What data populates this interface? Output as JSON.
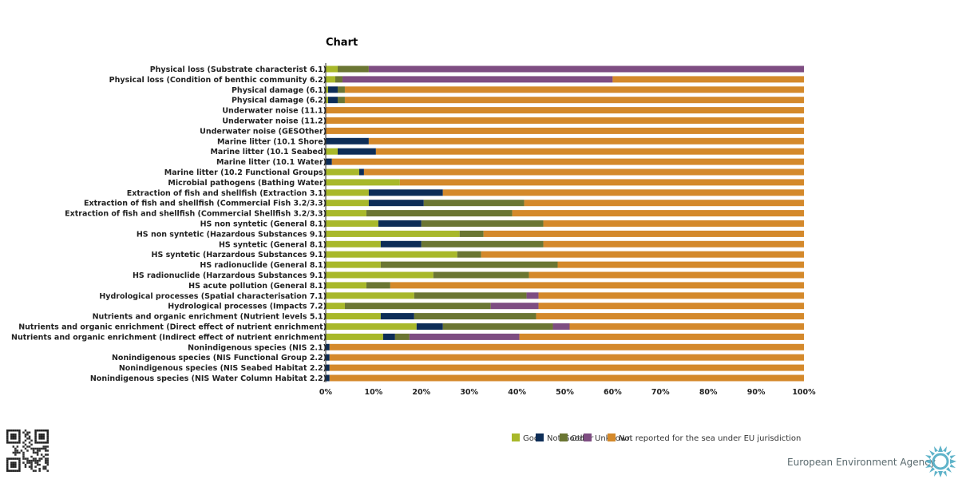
{
  "chart_data": {
    "type": "bar",
    "orientation": "horizontal",
    "stacked": "percent",
    "title": "Chart",
    "xlim": [
      0,
      100
    ],
    "x_ticks": [
      "0%",
      "10%",
      "20%",
      "30%",
      "40%",
      "50%",
      "60%",
      "70%",
      "80%",
      "90%",
      "100%"
    ],
    "legend_position": "bottom-right",
    "categories": [
      "Physical loss (Substrate characterist 6.1)",
      "Physical loss (Condition of benthic community 6.2)",
      "Physical damage (6.1)",
      "Physical damage (6.2)",
      "Underwater noise (11.1)",
      "Underwater noise (11.2)",
      "Underwater noise (GESOther)",
      "Marine litter (10.1 Shore)",
      "Marine litter (10.1 Seabed)",
      "Marine litter (10.1 Water)",
      "Marine litter (10.2 Functional Groups)",
      "Microbial pathogens (Bathing Water)",
      "Extraction of fish and shellfish (Extraction 3.1)",
      "Extraction of fish and shellfish (Commercial Fish 3.2/3.3)",
      "Extraction of fish and shellfish (Commercial Shellfish 3.2/3.3)",
      "HS non syntetic (General 8.1)",
      "HS non syntetic (Hazardous Substances 9.1)",
      "HS syntetic (General 8.1)",
      "HS syntetic (Harzardous Substances 9.1)",
      "HS radionuclide (General 8.1)",
      "HS radionuclide (Harzardous Substances 9.1)",
      "HS acute pollution (General 8.1)",
      "Hydrological processes (Spatial characterisation 7.1)",
      "Hydrological processes (Impacts 7.2)",
      "Nutrients and organic enrichment (Nutrient levels 5.1)",
      "Nutrients and organic enrichment (Direct effect of nutrient enrichment)",
      "Nutrients and organic enrichment (Indirect effect of nutrient enrichment)",
      "Nonindigenous species (NIS 2.1)",
      "Nonindigenous species (NIS Functional Group 2.2)",
      "Nonindigenous species (NIS Seabed Habitat 2.2)",
      "Nonindigenous species (NIS Water Column Habitat 2.2)"
    ],
    "series": [
      {
        "name": "Good",
        "color": "#a8b82a",
        "values": [
          2.5,
          2,
          0.5,
          0.5,
          0,
          0,
          0,
          0,
          2.5,
          0,
          7,
          15.5,
          9,
          9,
          8.5,
          11,
          28,
          11.5,
          27.5,
          11.5,
          22.5,
          8.5,
          18.5,
          4,
          11.5,
          19,
          12,
          0,
          0,
          0,
          0
        ]
      },
      {
        "name": "Not Good",
        "color": "#0d2d57",
        "values": [
          0,
          0,
          2,
          2,
          0,
          0,
          0,
          9,
          8,
          1.3,
          1,
          0,
          15.5,
          11.5,
          0,
          9,
          0,
          8.5,
          0,
          0,
          0,
          0,
          0,
          0,
          7,
          5.5,
          2.5,
          0.8,
          0.8,
          0.8,
          0.8
        ]
      },
      {
        "name": "Other",
        "color": "#6b7633",
        "values": [
          6.5,
          1.5,
          1.5,
          1.5,
          0,
          0,
          0,
          0,
          0,
          0,
          0,
          0,
          0,
          21,
          30.5,
          25.5,
          5,
          25.5,
          5,
          37,
          20,
          5,
          23.5,
          30.5,
          25.5,
          23,
          3,
          0,
          0,
          0,
          0
        ]
      },
      {
        "name": "Unknown",
        "color": "#7e4d82",
        "values": [
          91,
          56.5,
          0,
          0,
          0,
          0,
          0,
          0,
          0,
          0,
          0,
          0,
          0,
          0,
          0,
          0,
          0,
          0,
          0,
          0,
          0,
          0,
          2.5,
          10,
          0,
          3.5,
          23,
          0,
          0,
          0,
          0
        ]
      },
      {
        "name": "Not reported for the sea under EU jurisdiction",
        "color": "#d4892b",
        "values": [
          0,
          40,
          96,
          96,
          100,
          100,
          100,
          91,
          89.5,
          98.7,
          92,
          84.5,
          75.5,
          58.5,
          61,
          54.5,
          67,
          54.5,
          67.5,
          51.5,
          57.5,
          86.5,
          55.5,
          55.5,
          56,
          49,
          59.5,
          99.2,
          99.2,
          99.2,
          99.2
        ]
      }
    ]
  },
  "footer": {
    "agency_name": "European Environment Agency"
  }
}
